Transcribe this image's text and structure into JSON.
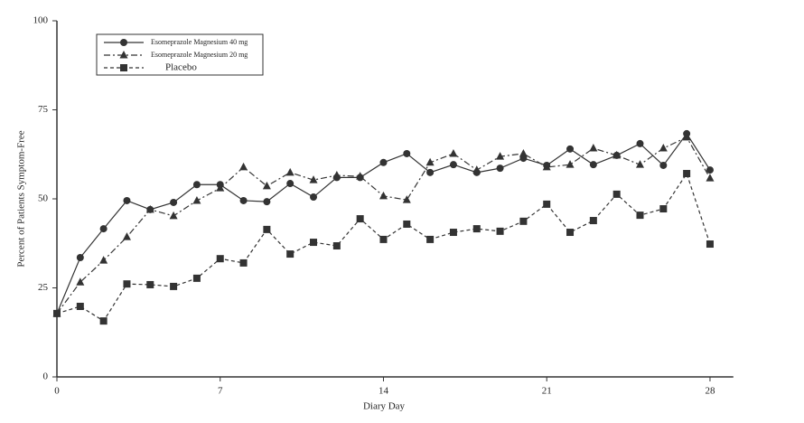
{
  "chart_data": {
    "type": "line",
    "x_label": "Diary Day",
    "y_label": "Percent of Patients Symptom-Free",
    "x": [
      0,
      1,
      2,
      3,
      4,
      5,
      6,
      7,
      8,
      9,
      10,
      11,
      12,
      13,
      14,
      15,
      16,
      17,
      18,
      19,
      20,
      21,
      22,
      23,
      24,
      25,
      26,
      27,
      28
    ],
    "xlim": [
      0,
      29
    ],
    "xticks": [
      0,
      7,
      14,
      21,
      28
    ],
    "ylim": [
      0,
      100
    ],
    "yticks": [
      0,
      25,
      50,
      75,
      100
    ],
    "grid": false,
    "legend": "upper left",
    "series": [
      {
        "name": "Esomeprazole Magnesium 40 mg",
        "color": "#333333",
        "marker": "circle",
        "dash": "solid",
        "values": [
          17.8,
          33.5,
          41.6,
          49.5,
          47,
          49,
          54,
          54,
          49.5,
          49.2,
          54.3,
          50.5,
          56,
          56,
          60.2,
          62.7,
          57.4,
          59.6,
          57.4,
          58.6,
          61.4,
          59.4,
          64,
          59.6,
          62.2,
          65.5,
          59.4,
          68.3,
          58.1
        ]
      },
      {
        "name": "Esomeprazole Magnesium 20 mg",
        "color": "#333333",
        "marker": "triangle",
        "dash": "dashdot",
        "values": [
          17.8,
          26.6,
          32.7,
          39.3,
          47,
          45.2,
          49.5,
          53,
          58.9,
          53.6,
          57.4,
          55.3,
          56.6,
          56.3,
          50.8,
          49.7,
          60.2,
          62.7,
          58.1,
          61.9,
          62.7,
          58.9,
          59.6,
          64.2,
          62.2,
          59.6,
          64.2,
          67.3,
          55.8
        ]
      },
      {
        "name": "Placebo",
        "color": "#333333",
        "marker": "square",
        "dash": "dashed",
        "values": [
          17.8,
          19.8,
          15.7,
          26.1,
          25.9,
          25.4,
          27.7,
          33.2,
          32,
          41.4,
          34.5,
          37.8,
          36.8,
          44.4,
          38.6,
          42.9,
          38.6,
          40.6,
          41.6,
          40.9,
          43.7,
          48.5,
          40.6,
          43.9,
          51.3,
          45.4,
          47.2,
          57.1,
          37.3
        ]
      }
    ]
  }
}
